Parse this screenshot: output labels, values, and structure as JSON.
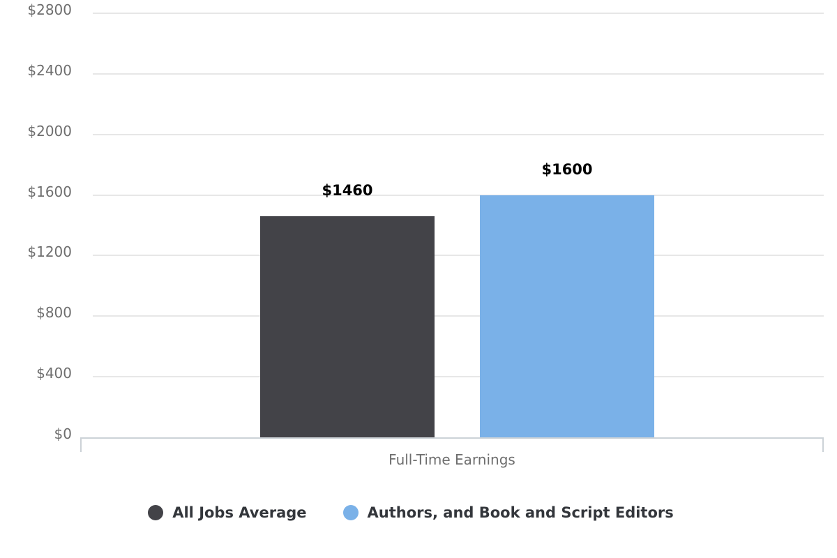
{
  "chart_data": {
    "type": "bar",
    "title": "",
    "xlabel": "Full-Time Earnings",
    "ylabel": "",
    "ylim": [
      0,
      2800
    ],
    "ytick_step": 400,
    "yticks": [
      {
        "value": 0,
        "label": "$0"
      },
      {
        "value": 400,
        "label": "$400"
      },
      {
        "value": 800,
        "label": "$800"
      },
      {
        "value": 1200,
        "label": "$1200"
      },
      {
        "value": 1600,
        "label": "$1600"
      },
      {
        "value": 2000,
        "label": "$2000"
      },
      {
        "value": 2400,
        "label": "$2400"
      },
      {
        "value": 2800,
        "label": "$2800"
      }
    ],
    "grid": true,
    "legend_position": "bottom",
    "categories": [
      "Full-Time Earnings"
    ],
    "series": [
      {
        "name": "All Jobs Average",
        "values": [
          1460
        ],
        "value_label": "$1460",
        "color": "#434348"
      },
      {
        "name": "Authors, and Book and Script Editors",
        "values": [
          1600
        ],
        "value_label": "$1600",
        "color": "#7ab1e8"
      }
    ]
  },
  "colors": {
    "background": "#ffffff",
    "gridline": "#e7e7e7",
    "axis_frame": "#ccd2d7",
    "tick_text": "#6e6e6e",
    "value_label_text": "#000000",
    "legend_text": "#33363b"
  }
}
